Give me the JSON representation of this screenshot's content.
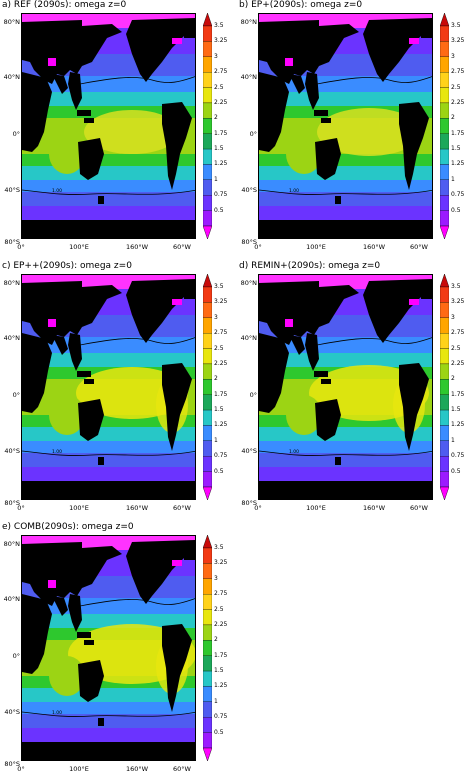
{
  "panels": [
    {
      "title": "a)  REF (2090s): omega z=0"
    },
    {
      "title": "b)  EP+(2090s): omega z=0"
    },
    {
      "title": "c)  EP++(2090s): omega z=0"
    },
    {
      "title": "d)  REMIN+(2090s): omega z=0"
    },
    {
      "title": "e)  COMB(2090s): omega z=0"
    }
  ],
  "y_ticks": [
    "80°N",
    "40°N",
    "0°",
    "40°S",
    "80°S"
  ],
  "x_ticks": [
    "0°",
    "100°E",
    "160°W",
    "60°W"
  ],
  "colorbar": {
    "levels": [
      "3.5",
      "3.25",
      "3",
      "2.75",
      "2.5",
      "2.25",
      "2",
      "1.75",
      "1.5",
      "1.25",
      "1",
      "0.75",
      "0.5"
    ],
    "colors": [
      "#ff00ff",
      "#9b1bff",
      "#6b33ff",
      "#4f5cf0",
      "#3a8cff",
      "#27c7c7",
      "#1ca85a",
      "#2ec82e",
      "#9cd414",
      "#e8e60e",
      "#ffd21a",
      "#ffa500",
      "#ff6a14",
      "#f23a14",
      "#c80a0a"
    ]
  },
  "contour_label": "1.00"
}
